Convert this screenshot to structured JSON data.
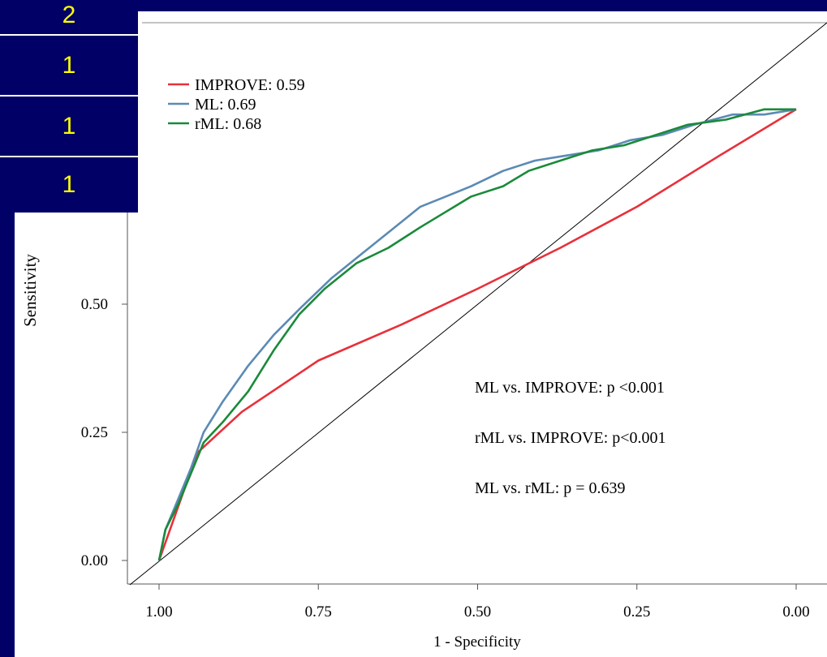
{
  "slide": {
    "background": "#000066",
    "cell_text_color": "#ffff00",
    "cells": [
      "2",
      "1",
      "1",
      "1"
    ]
  },
  "chart_data": {
    "type": "line",
    "title": "",
    "xlabel": "1 - Specificity",
    "ylabel": "Sensitivity",
    "x_reversed": true,
    "xlim": [
      1.0,
      0.0
    ],
    "ylim": [
      0.0,
      1.0
    ],
    "x_ticks": [
      "1.00",
      "0.75",
      "0.50",
      "0.25",
      "0.00"
    ],
    "y_ticks": [
      "0.00",
      "0.25",
      "0.50"
    ],
    "grid": false,
    "legend_position": "top-left",
    "reference_line": "diagonal",
    "series": [
      {
        "name": "IMPROVE: 0.59",
        "color": "#e8303a",
        "points": [
          [
            1.0,
            0.0
          ],
          [
            0.94,
            0.21
          ],
          [
            0.87,
            0.29
          ],
          [
            0.75,
            0.39
          ],
          [
            0.62,
            0.46
          ],
          [
            0.5,
            0.53
          ],
          [
            0.37,
            0.61
          ],
          [
            0.25,
            0.69
          ],
          [
            0.12,
            0.79
          ],
          [
            0.0,
            0.88
          ]
        ]
      },
      {
        "name": "ML: 0.69",
        "color": "#5b8ab5",
        "points": [
          [
            1.0,
            0.0
          ],
          [
            0.99,
            0.06
          ],
          [
            0.97,
            0.12
          ],
          [
            0.95,
            0.18
          ],
          [
            0.93,
            0.25
          ],
          [
            0.9,
            0.31
          ],
          [
            0.86,
            0.38
          ],
          [
            0.82,
            0.44
          ],
          [
            0.78,
            0.49
          ],
          [
            0.73,
            0.55
          ],
          [
            0.68,
            0.6
          ],
          [
            0.63,
            0.65
          ],
          [
            0.59,
            0.69
          ],
          [
            0.55,
            0.71
          ],
          [
            0.51,
            0.73
          ],
          [
            0.46,
            0.76
          ],
          [
            0.41,
            0.78
          ],
          [
            0.36,
            0.79
          ],
          [
            0.31,
            0.8
          ],
          [
            0.26,
            0.82
          ],
          [
            0.21,
            0.83
          ],
          [
            0.16,
            0.85
          ],
          [
            0.1,
            0.87
          ],
          [
            0.05,
            0.87
          ],
          [
            0.0,
            0.88
          ]
        ]
      },
      {
        "name": "rML: 0.68",
        "color": "#1a8a3a",
        "points": [
          [
            1.0,
            0.0
          ],
          [
            0.99,
            0.06
          ],
          [
            0.97,
            0.11
          ],
          [
            0.95,
            0.17
          ],
          [
            0.93,
            0.23
          ],
          [
            0.9,
            0.27
          ],
          [
            0.86,
            0.33
          ],
          [
            0.82,
            0.41
          ],
          [
            0.78,
            0.48
          ],
          [
            0.74,
            0.53
          ],
          [
            0.69,
            0.58
          ],
          [
            0.64,
            0.61
          ],
          [
            0.59,
            0.65
          ],
          [
            0.55,
            0.68
          ],
          [
            0.51,
            0.71
          ],
          [
            0.46,
            0.73
          ],
          [
            0.42,
            0.76
          ],
          [
            0.37,
            0.78
          ],
          [
            0.32,
            0.8
          ],
          [
            0.27,
            0.81
          ],
          [
            0.22,
            0.83
          ],
          [
            0.17,
            0.85
          ],
          [
            0.11,
            0.86
          ],
          [
            0.05,
            0.88
          ],
          [
            0.0,
            0.88
          ]
        ]
      }
    ],
    "annotations": [
      "ML vs. IMPROVE: p <0.001",
      "rML vs. IMPROVE: p<0.001",
      "ML vs. rML: p = 0.639"
    ]
  }
}
